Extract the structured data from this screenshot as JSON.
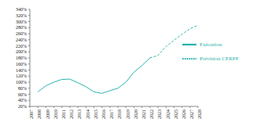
{
  "chart_data": {
    "type": "line",
    "categories": [
      "2007",
      "2008",
      "2009",
      "2010",
      "2011",
      "2012",
      "2013",
      "2014",
      "2015",
      "2016",
      "2017",
      "2018",
      "2019",
      "2020",
      "2021",
      "2022",
      "2023",
      "2024",
      "2025",
      "2026",
      "2027",
      "2028"
    ],
    "series": [
      {
        "name": "Exécution",
        "color": "#2bb3ad",
        "line_style": "solid",
        "values": [
          null,
          68,
          88,
          100,
          109,
          110,
          98,
          85,
          68,
          63,
          72,
          80,
          100,
          133,
          155,
          180,
          null,
          null,
          null,
          null,
          null,
          null
        ]
      },
      {
        "name": "Prévision CERPE",
        "color": "#2bb3ad",
        "line_style": "dashed",
        "values": [
          null,
          null,
          null,
          null,
          null,
          null,
          null,
          null,
          null,
          null,
          null,
          null,
          null,
          null,
          null,
          180,
          188,
          218,
          238,
          258,
          276,
          288
        ]
      }
    ],
    "ylim": [
      20,
      340
    ],
    "yticks": [
      {
        "value": 20,
        "label": "20%"
      },
      {
        "value": 40,
        "label": "40%"
      },
      {
        "value": 60,
        "label": "60%"
      },
      {
        "value": 80,
        "label": "80%"
      },
      {
        "value": 100,
        "label": "100%"
      },
      {
        "value": 120,
        "label": "120%"
      },
      {
        "value": 140,
        "label": "140%"
      },
      {
        "value": 160,
        "label": "160%"
      },
      {
        "value": 180,
        "label": "180%"
      },
      {
        "value": 200,
        "label": "200%"
      },
      {
        "value": 220,
        "label": "220%"
      },
      {
        "value": 240,
        "label": "240%"
      },
      {
        "value": 260,
        "label": "260%"
      },
      {
        "value": 280,
        "label": "280%"
      },
      {
        "value": 300,
        "label": "300%"
      },
      {
        "value": 320,
        "label": "320%"
      },
      {
        "value": 340,
        "label": "340%"
      }
    ],
    "grid": false,
    "legend": "upper right"
  }
}
